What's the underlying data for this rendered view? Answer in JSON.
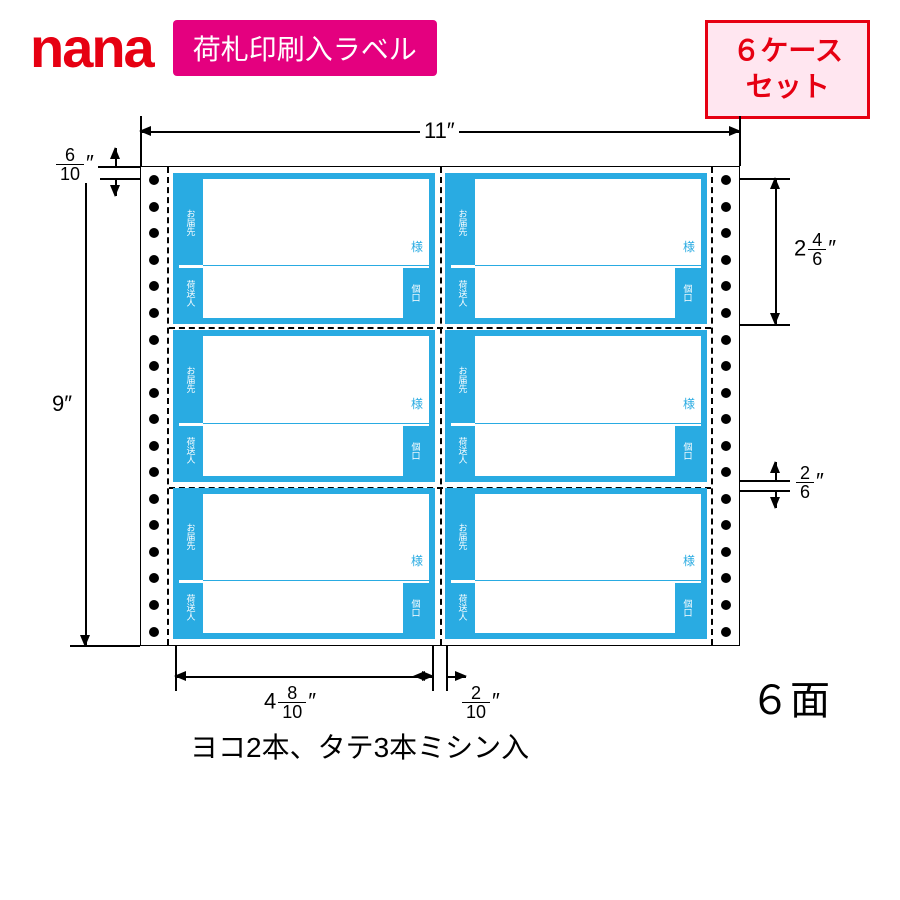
{
  "header": {
    "logo": "nana",
    "banner": "荷札印刷入ラベル",
    "set_box_line1": "６ケース",
    "set_box_line2": "セット"
  },
  "colors": {
    "brand_red": "#e60012",
    "banner_pink": "#e4007f",
    "set_box_bg": "#ffe6f0",
    "label_blue": "#29abe2",
    "line": "#000000",
    "background": "#ffffff"
  },
  "sheet": {
    "width_in": "11",
    "height_in": "9",
    "top_margin_whole": "",
    "top_margin_n": "6",
    "top_margin_d": "10",
    "label_h_whole": "2",
    "label_h_n": "4",
    "label_h_d": "6",
    "row_gap_n": "2",
    "row_gap_d": "6",
    "label_w_whole": "4",
    "label_w_n": "8",
    "label_w_d": "10",
    "col_gap_n": "2",
    "col_gap_d": "10",
    "cols": 2,
    "rows": 3,
    "tractor_holes": 18
  },
  "label_fields": {
    "recipient": "お届先",
    "sama": "様",
    "sender": "荷送人",
    "unit": "個口"
  },
  "footer": {
    "faces": "６面",
    "perforation": "ヨコ2本、タテ3本ミシン入"
  }
}
